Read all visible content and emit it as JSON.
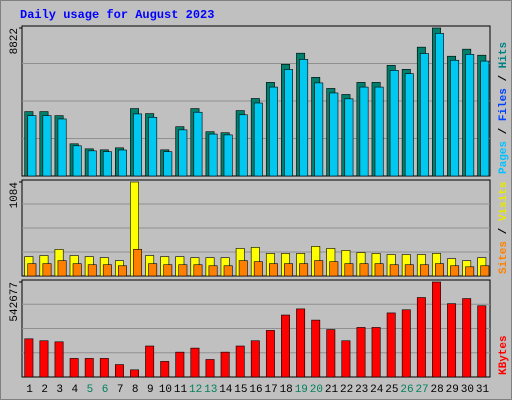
{
  "chart_data": {
    "type": "bar",
    "title": "Daily usage for August 2023",
    "categories": [
      "1",
      "2",
      "3",
      "4",
      "5",
      "6",
      "7",
      "8",
      "9",
      "10",
      "11",
      "12",
      "13",
      "14",
      "15",
      "16",
      "17",
      "18",
      "19",
      "20",
      "21",
      "22",
      "23",
      "24",
      "25",
      "26",
      "27",
      "28",
      "29",
      "30",
      "31"
    ],
    "weekend_days": [
      5,
      6,
      12,
      13,
      19,
      20,
      26,
      27
    ],
    "panels": [
      {
        "legend": [
          {
            "name": "Pages",
            "color": "#00c0ff"
          },
          {
            "name": "Files",
            "color": "#0040ff"
          },
          {
            "name": "Hits",
            "color": "#008080"
          }
        ],
        "ylim": [
          0,
          8822
        ],
        "yticks": [
          8822
        ],
        "series": [
          {
            "name": "Hits",
            "color": "#00806c",
            "values": [
              3840,
              3840,
              3600,
              1920,
              1620,
              1560,
              1680,
              4020,
              3720,
              1560,
              2940,
              4020,
              2640,
              2580,
              3900,
              4620,
              5580,
              6660,
              7320,
              5880,
              5220,
              4860,
              5580,
              5580,
              6600,
              6360,
              7680,
              8822,
              7140,
              7560,
              7200
            ]
          },
          {
            "name": "Pages",
            "color": "#00c8f0",
            "values": [
              3600,
              3600,
              3400,
              1800,
              1500,
              1450,
              1550,
              3700,
              3500,
              1450,
              2750,
              3800,
              2500,
              2450,
              3650,
              4350,
              5300,
              6350,
              6950,
              5550,
              4950,
              4600,
              5300,
              5300,
              6300,
              6100,
              7300,
              8500,
              6900,
              7250,
              6850
            ]
          }
        ]
      },
      {
        "legend": [
          {
            "name": "Sites",
            "color": "#ff8000"
          },
          {
            "name": "Visits",
            "color": "#e8e800"
          }
        ],
        "ylim": [
          0,
          1084
        ],
        "yticks": [
          1084
        ],
        "series": [
          {
            "name": "Visits",
            "color": "#ffff00",
            "values": [
              224,
              236,
              307,
              236,
              224,
              212,
              177,
              1084,
              236,
              224,
              224,
              212,
              212,
              212,
              318,
              330,
              260,
              260,
              260,
              342,
              318,
              295,
              271,
              260,
              248,
              248,
              248,
              260,
              200,
              177,
              212
            ]
          },
          {
            "name": "Sites",
            "color": "#ff8000",
            "values": [
              142,
              142,
              177,
              142,
              130,
              130,
              118,
              307,
              142,
              130,
              130,
              130,
              118,
              118,
              177,
              165,
              142,
              142,
              142,
              177,
              165,
              142,
              142,
              142,
              130,
              130,
              130,
              142,
              118,
              106,
              118
            ]
          }
        ]
      },
      {
        "legend": [
          {
            "name": "KBytes",
            "color": "#ff0000"
          }
        ],
        "ylim": [
          0,
          542677
        ],
        "yticks": [
          542677
        ],
        "series": [
          {
            "name": "KBytes",
            "color": "#ff0000",
            "values": [
              218000,
              207000,
              201000,
              106000,
              106000,
              106000,
              71000,
              41000,
              177000,
              89000,
              142000,
              165000,
              100000,
              142000,
              177000,
              207000,
              266000,
              354000,
              389000,
              325000,
              271000,
              207000,
              283000,
              283000,
              366000,
              384000,
              454000,
              542677,
              419000,
              448000,
              407000
            ]
          }
        ]
      }
    ]
  }
}
